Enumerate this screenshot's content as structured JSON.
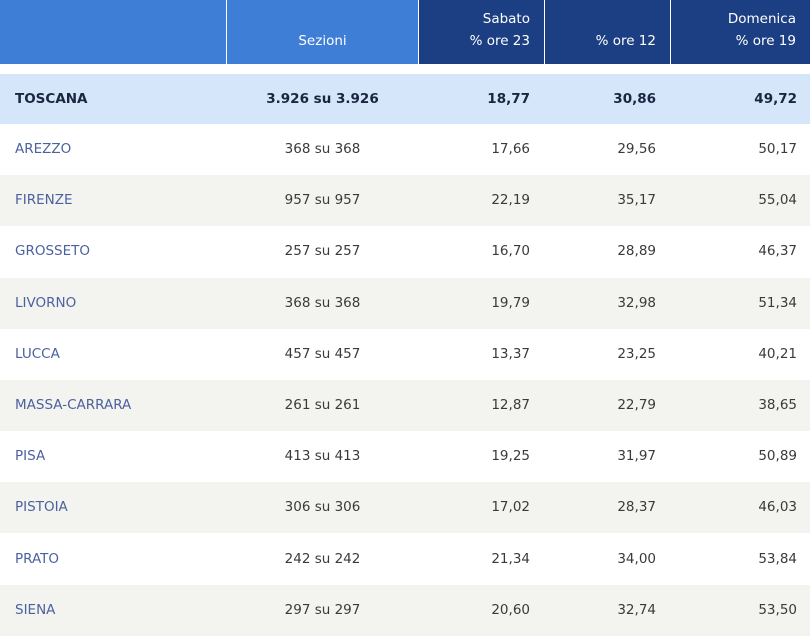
{
  "header": {
    "columns": [
      {
        "lines": [
          "Sezioni"
        ]
      },
      {
        "lines": [
          "Sabato",
          "% ore 23"
        ]
      },
      {
        "lines": [
          "% ore 12"
        ]
      },
      {
        "lines": [
          "Domenica",
          "% ore 19"
        ]
      }
    ]
  },
  "table": {
    "total": [
      "TOSCANA",
      "3.926 su 3.926",
      "18,77",
      "30,86",
      "49,72"
    ],
    "rows": [
      [
        "AREZZO",
        "368 su 368",
        "17,66",
        "29,56",
        "50,17"
      ],
      [
        "FIRENZE",
        "957 su 957",
        "22,19",
        "35,17",
        "55,04"
      ],
      [
        "GROSSETO",
        "257 su 257",
        "16,70",
        "28,89",
        "46,37"
      ],
      [
        "LIVORNO",
        "368 su 368",
        "19,79",
        "32,98",
        "51,34"
      ],
      [
        "LUCCA",
        "457 su 457",
        "13,37",
        "23,25",
        "40,21"
      ],
      [
        "MASSA-CARRARA",
        "261 su 261",
        "12,87",
        "22,79",
        "38,65"
      ],
      [
        "PISA",
        "413 su 413",
        "19,25",
        "31,97",
        "50,89"
      ],
      [
        "PISTOIA",
        "306 su 306",
        "17,02",
        "28,37",
        "46,03"
      ],
      [
        "PRATO",
        "242 su 242",
        "21,34",
        "34,00",
        "53,84"
      ],
      [
        "SIENA",
        "297 su 297",
        "20,60",
        "32,74",
        "53,50"
      ]
    ]
  }
}
